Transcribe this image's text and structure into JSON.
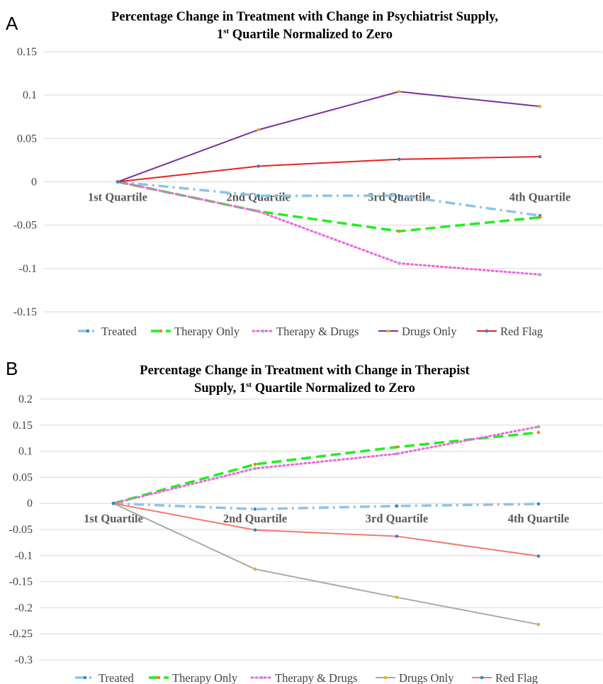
{
  "chart_data": [
    {
      "type": "line",
      "panel_label": "A",
      "title": {
        "line1": "Percentage Change in Treatment with Change in Psychiatrist Supply,",
        "line2_prefix": "1",
        "line2_sup": "st",
        "line2_suffix": " Quartile Normalized to Zero"
      },
      "categories": [
        "1st Quartile",
        "2nd Quartile",
        "3rd Quartile",
        "4th Quartile"
      ],
      "ylim": [
        -0.15,
        0.15
      ],
      "yticks": [
        "0.15",
        "0.1",
        "0.05",
        "0",
        "-0.05",
        "-0.1",
        "-0.15"
      ],
      "grid": true,
      "legend_position": "bottom",
      "series": [
        {
          "name": "Treated",
          "values": [
            0,
            -0.016,
            -0.016,
            -0.039
          ],
          "color": "#8EC3E6",
          "marker": "#2E86C1",
          "style": "dashdot"
        },
        {
          "name": "Therapy Only",
          "values": [
            0,
            -0.034,
            -0.057,
            -0.041
          ],
          "color": "#22EE22",
          "marker": "#F08020",
          "style": "dashed"
        },
        {
          "name": "Therapy & Drugs",
          "values": [
            0,
            -0.034,
            -0.094,
            -0.107
          ],
          "color": "#EE66DD",
          "marker": "#AAAAAA",
          "style": "dotted"
        },
        {
          "name": "Drugs Only",
          "values": [
            0,
            0.06,
            0.104,
            0.087
          ],
          "color": "#7B2FA0",
          "marker": "#E5B020",
          "style": "solid"
        },
        {
          "name": "Red Flag",
          "values": [
            0,
            0.018,
            0.026,
            0.029
          ],
          "color": "#E8231F",
          "marker": "#2E86C1",
          "style": "solid"
        }
      ]
    },
    {
      "type": "line",
      "panel_label": "B",
      "title": {
        "line1": "Percentage Change in Treatment with Change in Therapist",
        "line2_prefix": "Supply, 1",
        "line2_sup": "st",
        "line2_suffix": " Quartile Normalized to Zero"
      },
      "categories": [
        "1st Quartile",
        "2nd Quartile",
        "3rd Quartile",
        "4th Quartile"
      ],
      "ylim": [
        -0.3,
        0.2
      ],
      "yticks": [
        "0.2",
        "0.15",
        "0.1",
        "0.05",
        "0",
        "-0.05",
        "-0.1",
        "-0.15",
        "-0.2",
        "-0.25",
        "-0.3"
      ],
      "grid": true,
      "legend_position": "bottom",
      "series": [
        {
          "name": "Treated",
          "values": [
            0,
            -0.011,
            -0.005,
            -0.001
          ],
          "color": "#8EC3E6",
          "marker": "#2E86C1",
          "style": "dashdot"
        },
        {
          "name": "Therapy Only",
          "values": [
            0,
            0.075,
            0.108,
            0.136
          ],
          "color": "#22EE22",
          "marker": "#F08020",
          "style": "dashed"
        },
        {
          "name": "Therapy & Drugs",
          "values": [
            0,
            0.067,
            0.095,
            0.147
          ],
          "color": "#EE66DD",
          "marker": "#AAAAAA",
          "style": "dotted"
        },
        {
          "name": "Drugs Only",
          "values": [
            0,
            -0.126,
            -0.18,
            -0.232
          ],
          "color": "#AAAAAA",
          "marker": "#E5B020",
          "style": "solid"
        },
        {
          "name": "Red Flag",
          "values": [
            0,
            -0.051,
            -0.063,
            -0.101
          ],
          "color": "#F47A6E",
          "marker": "#2E86C1",
          "style": "solid"
        }
      ]
    }
  ]
}
